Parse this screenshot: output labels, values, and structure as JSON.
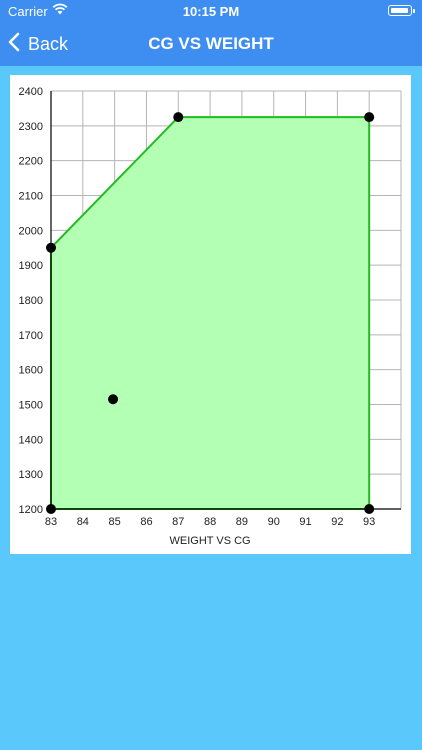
{
  "status": {
    "carrier": "Carrier",
    "time": "10:15 PM",
    "battery_level": 0.95
  },
  "nav": {
    "back_label": "Back",
    "title": "CG VS WEIGHT"
  },
  "colors": {
    "nav_bg": "#3d8ef0",
    "page_bg": "#5ac8fa",
    "envelope_fill": "#b3ffb3",
    "envelope_stroke": "#22bb22",
    "grid": "#b5b5b5",
    "point": "#000000"
  },
  "chart_data": {
    "type": "scatter",
    "xlabel": "WEIGHT VS CG",
    "ylabel": "",
    "xlim": [
      83,
      94
    ],
    "ylim": [
      1200,
      2400
    ],
    "x_ticks": [
      83,
      84,
      85,
      86,
      87,
      88,
      89,
      90,
      91,
      92,
      93
    ],
    "y_ticks": [
      1200,
      1300,
      1400,
      1500,
      1600,
      1700,
      1800,
      1900,
      2000,
      2100,
      2200,
      2300,
      2400
    ],
    "grid": true,
    "envelope": {
      "points": [
        [
          83,
          1200
        ],
        [
          83,
          1950
        ],
        [
          87,
          2325
        ],
        [
          93,
          2325
        ],
        [
          93,
          1200
        ]
      ]
    },
    "series": [
      {
        "points": [
          [
            83,
            1200
          ],
          [
            83,
            1950
          ],
          [
            87,
            2325
          ],
          [
            93,
            2325
          ],
          [
            93,
            1200
          ],
          [
            84.95,
            1515
          ]
        ]
      }
    ]
  }
}
